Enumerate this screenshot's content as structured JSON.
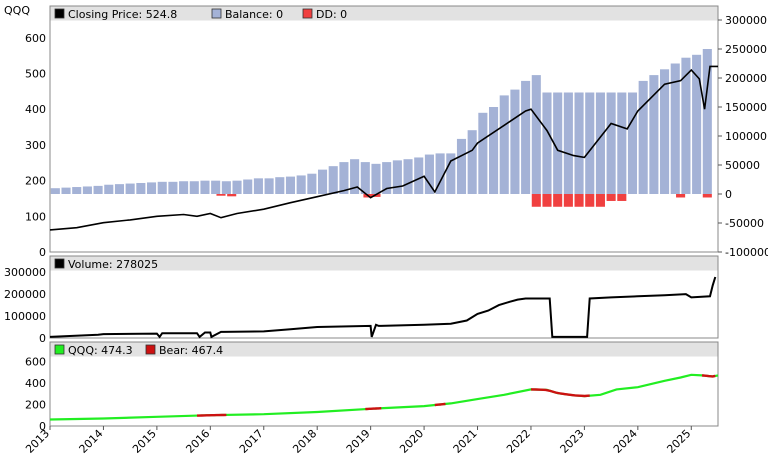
{
  "chart_data": [
    {
      "type": "bar+line",
      "ticker": "QQQ",
      "legend": [
        {
          "label": "Closing Price: 524.8",
          "color": "#000000"
        },
        {
          "label": "Balance: 0",
          "color": "#a4b2d6"
        },
        {
          "label": "DD: 0",
          "color": "#f04040"
        }
      ],
      "left_axis": {
        "ticks": [
          0,
          100,
          200,
          300,
          400,
          500,
          600
        ],
        "range": [
          0,
          650
        ]
      },
      "right_axis": {
        "ticks": [
          -100000,
          -50000,
          0,
          50000,
          100000,
          150000,
          200000,
          250000,
          300000
        ],
        "range": [
          -100000,
          300000
        ]
      },
      "price_series": {
        "name": "Closing Price",
        "t": [
          2013.0,
          2013.5,
          2014.0,
          2014.5,
          2015.0,
          2015.5,
          2015.75,
          2016.0,
          2016.2,
          2016.5,
          2017.0,
          2017.5,
          2018.0,
          2018.5,
          2018.75,
          2019.0,
          2019.3,
          2019.6,
          2020.0,
          2020.2,
          2020.5,
          2020.9,
          2021.0,
          2021.5,
          2021.9,
          2022.0,
          2022.3,
          2022.5,
          2022.8,
          2023.0,
          2023.5,
          2023.8,
          2024.0,
          2024.5,
          2024.8,
          2025.0,
          2025.15,
          2025.25,
          2025.35,
          2025.5
        ],
        "values": [
          62,
          68,
          82,
          90,
          100,
          105,
          100,
          108,
          96,
          108,
          120,
          138,
          155,
          172,
          182,
          152,
          178,
          185,
          212,
          168,
          255,
          285,
          305,
          355,
          395,
          400,
          340,
          285,
          270,
          265,
          360,
          345,
          395,
          470,
          480,
          510,
          485,
          400,
          520,
          520
        ]
      },
      "balance_bars": {
        "name": "Balance",
        "t": [
          2013.1,
          2013.3,
          2013.5,
          2013.7,
          2013.9,
          2014.1,
          2014.3,
          2014.5,
          2014.7,
          2014.9,
          2015.1,
          2015.3,
          2015.5,
          2015.7,
          2015.9,
          2016.1,
          2016.3,
          2016.5,
          2016.7,
          2016.9,
          2017.1,
          2017.3,
          2017.5,
          2017.7,
          2017.9,
          2018.1,
          2018.3,
          2018.5,
          2018.7,
          2018.9,
          2019.1,
          2019.3,
          2019.5,
          2019.7,
          2019.9,
          2020.1,
          2020.3,
          2020.5,
          2020.7,
          2020.9,
          2021.1,
          2021.3,
          2021.5,
          2021.7,
          2021.9,
          2022.1,
          2022.3,
          2022.5,
          2022.7,
          2022.9,
          2023.1,
          2023.3,
          2023.5,
          2023.7,
          2023.9,
          2024.1,
          2024.3,
          2024.5,
          2024.7,
          2024.9,
          2025.1,
          2025.3
        ],
        "values": [
          10000,
          11000,
          12000,
          13000,
          14000,
          16000,
          17000,
          18000,
          19000,
          20000,
          21000,
          21000,
          22000,
          22000,
          23000,
          23000,
          22000,
          23000,
          25000,
          27000,
          27000,
          29000,
          30000,
          32000,
          35000,
          42000,
          48000,
          55000,
          60000,
          55000,
          52000,
          55000,
          58000,
          60000,
          63000,
          68000,
          70000,
          70000,
          95000,
          110000,
          140000,
          150000,
          170000,
          180000,
          195000,
          205000,
          175000,
          175000,
          175000,
          175000,
          175000,
          175000,
          175000,
          175000,
          175000,
          195000,
          205000,
          215000,
          225000,
          235000,
          240000,
          250000
        ]
      },
      "drawdown_bars": {
        "name": "DD",
        "t": [
          2016.2,
          2016.4,
          2018.95,
          2019.1,
          2022.1,
          2022.3,
          2022.5,
          2022.7,
          2022.9,
          2023.1,
          2023.3,
          2023.5,
          2023.7,
          2024.8,
          2025.3
        ],
        "values": [
          -3000,
          -4000,
          -6000,
          -5000,
          -22000,
          -22000,
          -22000,
          -22000,
          -22000,
          -22000,
          -22000,
          -12000,
          -12000,
          -6000,
          -6000
        ]
      }
    },
    {
      "type": "line",
      "legend": [
        {
          "label": "Volume: 278025",
          "color": "#000000"
        }
      ],
      "axis": {
        "ticks": [
          0,
          100000,
          200000,
          300000
        ],
        "range": [
          0,
          310000
        ]
      },
      "series": {
        "name": "Volume",
        "t": [
          2013.0,
          2013.9,
          2014.0,
          2015.0,
          2015.05,
          2015.1,
          2015.75,
          2015.8,
          2015.9,
          2016.0,
          2016.02,
          2016.2,
          2016.25,
          2017.0,
          2017.5,
          2018.0,
          2019.0,
          2019.02,
          2019.1,
          2019.15,
          2020.0,
          2020.5,
          2020.8,
          2021.0,
          2021.2,
          2021.4,
          2021.6,
          2021.75,
          2021.9,
          2022.1,
          2022.35,
          2022.4,
          2023.05,
          2023.1,
          2023.5,
          2024.0,
          2024.5,
          2024.9,
          2025.0,
          2025.35,
          2025.4,
          2025.45
        ],
        "values": [
          5000,
          15000,
          18000,
          20000,
          5000,
          22000,
          22000,
          5000,
          25000,
          25000,
          5000,
          28000,
          28000,
          30000,
          40000,
          50000,
          55000,
          5000,
          60000,
          55000,
          60000,
          65000,
          80000,
          110000,
          125000,
          150000,
          165000,
          175000,
          180000,
          180000,
          180000,
          5000,
          5000,
          180000,
          185000,
          190000,
          195000,
          200000,
          185000,
          190000,
          240000,
          278000
        ]
      }
    },
    {
      "type": "line",
      "legend": [
        {
          "label": "QQQ: 474.3",
          "color": "#22ee22"
        },
        {
          "label": "Bear: 467.4",
          "color": "#cc1111"
        }
      ],
      "axis": {
        "ticks": [
          0,
          200,
          400,
          600
        ],
        "range": [
          0,
          650
        ]
      },
      "series": {
        "name": "QQQ",
        "t": [
          2013.0,
          2014.0,
          2015.0,
          2016.0,
          2017.0,
          2018.0,
          2019.0,
          2020.0,
          2020.5,
          2021.0,
          2021.5,
          2022.0,
          2022.3,
          2022.5,
          2022.8,
          2023.0,
          2023.3,
          2023.6,
          2024.0,
          2024.5,
          2024.8,
          2025.0,
          2025.2,
          2025.4,
          2025.5
        ],
        "values": [
          60,
          70,
          85,
          100,
          110,
          130,
          160,
          185,
          210,
          250,
          290,
          340,
          335,
          305,
          285,
          278,
          290,
          340,
          360,
          420,
          450,
          475,
          470,
          460,
          470
        ]
      },
      "bear_segments": [
        [
          2015.75,
          2016.3
        ],
        [
          2018.9,
          2019.2
        ],
        [
          2020.2,
          2020.4
        ],
        [
          2022.0,
          2023.1
        ],
        [
          2025.2,
          2025.45
        ]
      ],
      "x_ticks": [
        "2013",
        "2014",
        "2015",
        "2016",
        "2017",
        "2018",
        "2019",
        "2020",
        "2021",
        "2022",
        "2023",
        "2024",
        "2025"
      ]
    }
  ]
}
